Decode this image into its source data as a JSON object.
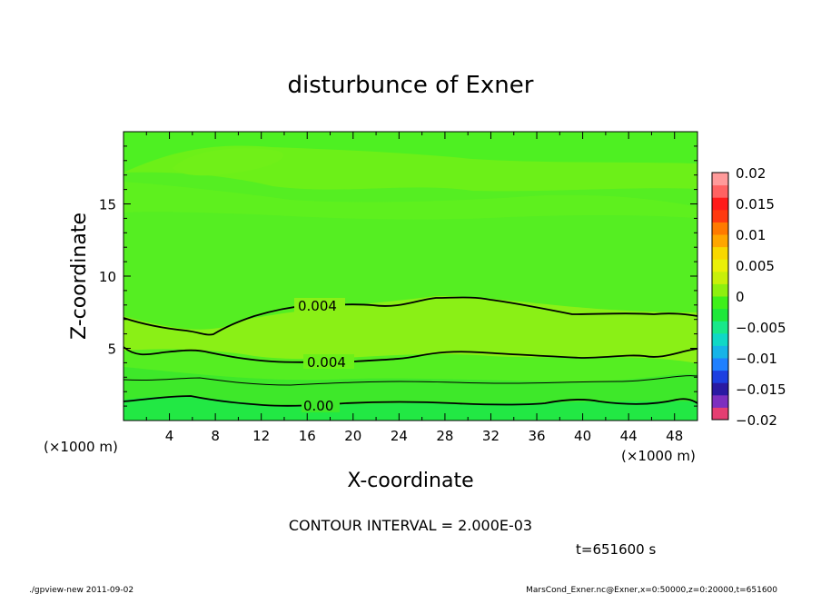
{
  "chart_data": {
    "type": "heatmap",
    "title": "disturbunce of Exner",
    "xlabel": "X-coordinate",
    "ylabel": "Z-coordinate",
    "x_unit": "(×1000 m)",
    "y_unit": "(×1000 m)",
    "xlim": [
      0,
      50
    ],
    "ylim": [
      0,
      20
    ],
    "x_ticks": [
      "4",
      "8",
      "12",
      "16",
      "20",
      "24",
      "28",
      "32",
      "36",
      "40",
      "44",
      "48"
    ],
    "y_ticks": [
      "5",
      "10",
      "15"
    ],
    "contour_interval_text": "CONTOUR INTERVAL = 2.000E-03",
    "time_text": "t=651600 s",
    "colorbar": {
      "range": [
        -0.02,
        0.02
      ],
      "labels": [
        "0.02",
        "0.015",
        "0.01",
        "0.005",
        "0",
        "−0.005",
        "−0.01",
        "−0.015",
        "−0.02"
      ],
      "colors": [
        "#e53e72",
        "#7d2fbf",
        "#2a1aa3",
        "#1d3fe0",
        "#1f80ff",
        "#16b4e8",
        "#10d8c6",
        "#18e88a",
        "#1ee83a",
        "#3ff01a",
        "#8ef00f",
        "#c8f00a",
        "#eaf008",
        "#f8d800",
        "#ffa600",
        "#ff7a00",
        "#ff3a10",
        "#ff1a1a",
        "#ff6262",
        "#ff9a9a"
      ]
    },
    "contour_labels": [
      "0.004",
      "0.004",
      "0.00"
    ],
    "footer_left": "./gpview-new   2011-09-02",
    "footer_right": "MarsCond_Exner.nc@Exner,x=0:50000,z=0:20000,t=651600"
  }
}
